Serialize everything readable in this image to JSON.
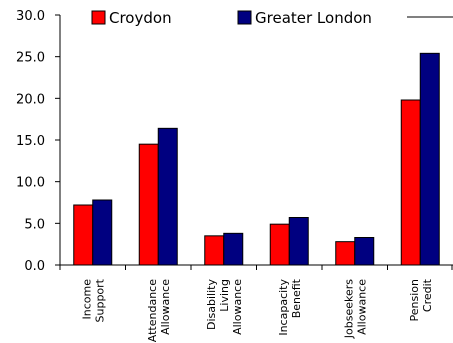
{
  "chart_data": {
    "type": "bar",
    "categories": [
      [
        "Income",
        "Support"
      ],
      [
        "Attendance",
        "Allowance"
      ],
      [
        "Disability",
        "Living",
        "Allowance"
      ],
      [
        "Incapacity",
        "Benefit"
      ],
      [
        "Jobseekers",
        "Allowance"
      ],
      [
        "Pension",
        "Credit"
      ]
    ],
    "series": [
      {
        "name": "Croydon",
        "color": "#ff0000",
        "values": [
          7.2,
          14.5,
          3.5,
          4.9,
          2.8,
          19.8
        ]
      },
      {
        "name": "Greater London",
        "color": "#000080",
        "values": [
          7.8,
          16.4,
          3.8,
          5.7,
          3.3,
          25.4
        ]
      }
    ],
    "ylim": [
      0,
      30
    ],
    "yticks": [
      "0.0",
      "5.0",
      "10.0",
      "15.0",
      "20.0",
      "25.0",
      "30.0"
    ],
    "title": "",
    "xlabel": "",
    "ylabel": "",
    "grid": false,
    "legend_position": "top"
  }
}
